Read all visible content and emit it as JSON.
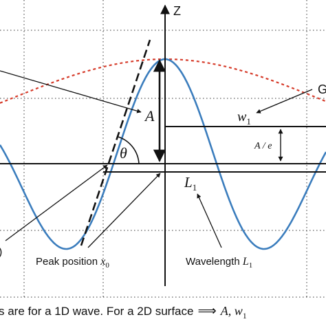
{
  "axis": {
    "z_label": "Z"
  },
  "labels": {
    "amplitude": "A",
    "theta": "θ",
    "width_main": "w",
    "width_sub": "1",
    "a_over_e": "A / e",
    "wavelength_symbol_main": "L",
    "wavelength_symbol_sub": "1",
    "peak_text": "Peak position ",
    "peak_var_main": "x",
    "peak_var_sub": "0",
    "wavelength_text": "Wavelength ",
    "wavelength_var_main": "L",
    "wavelength_var_sub": "1",
    "cut_right_top": "G",
    "cut_left_paren": ")",
    "bottom_text": "s are for a 1D wave. For a 2D surface",
    "bottom_arrow": "⟹",
    "bottom_vars_main": "A, w",
    "bottom_vars_sub": "1"
  },
  "colors": {
    "wave": "#3b7dbd",
    "envelope": "#d63b2a",
    "ink": "#111111",
    "grid": "#333333"
  }
}
